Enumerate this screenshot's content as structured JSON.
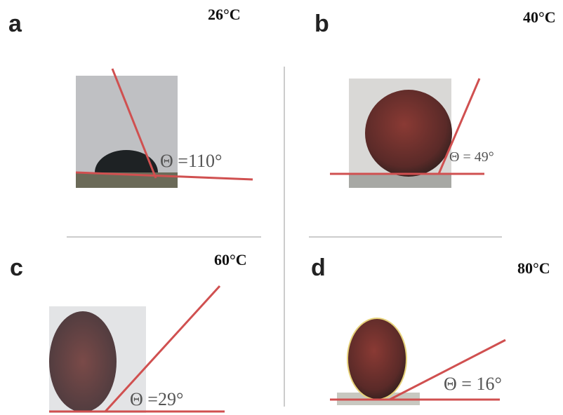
{
  "panels": [
    {
      "label": "a",
      "temperature": "26°C",
      "angle": "Θ =110°"
    },
    {
      "label": "b",
      "temperature": "40°C",
      "angle": "Θ = 49°"
    },
    {
      "label": "c",
      "temperature": "60°C",
      "angle": "Θ =29°"
    },
    {
      "label": "d",
      "temperature": "80°C",
      "angle": "Θ = 16°"
    }
  ]
}
